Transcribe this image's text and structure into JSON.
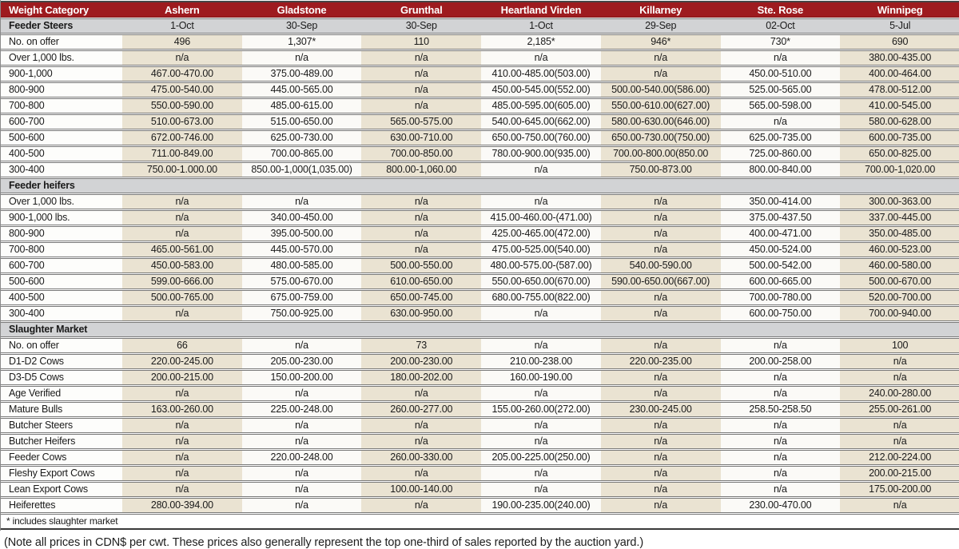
{
  "chart_data": {
    "type": "table",
    "columns": [
      "Weight Category",
      "Ashern",
      "Gladstone",
      "Grunthal",
      "Heartland Virden",
      "Killarney",
      "Ste. Rose",
      "Winnipeg"
    ],
    "sections": [
      {
        "title": "Feeder Steers",
        "dates": [
          "1-Oct",
          "30-Sep",
          "30-Sep",
          "1-Oct",
          "29-Sep",
          "02-Oct",
          "5-Jul"
        ],
        "rows": [
          {
            "label": "No. on offer",
            "values": [
              "496",
              "1,307*",
              "110",
              "2,185*",
              "946*",
              "730*",
              "690"
            ]
          },
          {
            "label": "Over 1,000 lbs.",
            "values": [
              "n/a",
              "n/a",
              "n/a",
              "n/a",
              "n/a",
              "n/a",
              "380.00-435.00"
            ]
          },
          {
            "label": "900-1,000",
            "values": [
              "467.00-470.00",
              "375.00-489.00",
              "n/a",
              "410.00-485.00(503.00)",
              "n/a",
              "450.00-510.00",
              "400.00-464.00"
            ]
          },
          {
            "label": "800-900",
            "values": [
              "475.00-540.00",
              "445.00-565.00",
              "n/a",
              "450.00-545.00(552.00)",
              "500.00-540.00(586.00)",
              "525.00-565.00",
              "478.00-512.00"
            ]
          },
          {
            "label": "700-800",
            "values": [
              "550.00-590.00",
              "485.00-615.00",
              "n/a",
              "485.00-595.00(605.00)",
              "550.00-610.00(627.00)",
              "565.00-598.00",
              "410.00-545.00"
            ]
          },
          {
            "label": "600-700",
            "values": [
              "510.00-673.00",
              "515.00-650.00",
              "565.00-575.00",
              "540.00-645.00(662.00)",
              "580.00-630.00(646.00)",
              "n/a",
              "580.00-628.00"
            ]
          },
          {
            "label": "500-600",
            "values": [
              "672.00-746.00",
              "625.00-730.00",
              "630.00-710.00",
              "650.00-750.00(760.00)",
              "650.00-730.00(750.00)",
              "625.00-735.00",
              "600.00-735.00"
            ]
          },
          {
            "label": "400-500",
            "values": [
              "711.00-849.00",
              "700.00-865.00",
              "700.00-850.00",
              "780.00-900.00(935.00)",
              "700.00-800.00(850.00",
              "725.00-860.00",
              "650.00-825.00"
            ]
          },
          {
            "label": "300-400",
            "values": [
              "750.00-1.000.00",
              "850.00-1,000(1,035.00)",
              "800.00-1,060.00",
              "n/a",
              "750.00-873.00",
              "800.00-840.00",
              "700.00-1,020.00"
            ]
          }
        ]
      },
      {
        "title": "Feeder heifers",
        "dates": null,
        "rows": [
          {
            "label": "Over 1,000 lbs.",
            "values": [
              "n/a",
              "n/a",
              "n/a",
              "n/a",
              "n/a",
              "350.00-414.00",
              "300.00-363.00"
            ]
          },
          {
            "label": "900-1,000 lbs.",
            "values": [
              "n/a",
              "340.00-450.00",
              "n/a",
              "415.00-460.00-(471.00)",
              "n/a",
              "375.00-437.50",
              "337.00-445.00"
            ]
          },
          {
            "label": "800-900",
            "values": [
              "n/a",
              "395.00-500.00",
              "n/a",
              "425.00-465.00(472.00)",
              "n/a",
              "400.00-471.00",
              "350.00-485.00"
            ]
          },
          {
            "label": "700-800",
            "values": [
              "465.00-561.00",
              "445.00-570.00",
              "n/a",
              "475.00-525.00(540.00)",
              "n/a",
              "450.00-524.00",
              "460.00-523.00"
            ]
          },
          {
            "label": "600-700",
            "values": [
              "450.00-583.00",
              "480.00-585.00",
              "500.00-550.00",
              "480.00-575.00-(587.00)",
              "540.00-590.00",
              "500.00-542.00",
              "460.00-580.00"
            ]
          },
          {
            "label": "500-600",
            "values": [
              "599.00-666.00",
              "575.00-670.00",
              "610.00-650.00",
              "550.00-650.00(670.00)",
              "590.00-650.00(667.00)",
              "600.00-665.00",
              "500.00-670.00"
            ]
          },
          {
            "label": "400-500",
            "values": [
              "500.00-765.00",
              "675.00-759.00",
              "650.00-745.00",
              "680.00-755.00(822.00)",
              "n/a",
              "700.00-780.00",
              "520.00-700.00"
            ]
          },
          {
            "label": "300-400",
            "values": [
              "n/a",
              "750.00-925.00",
              "630.00-950.00",
              "n/a",
              "n/a",
              "600.00-750.00",
              "700.00-940.00"
            ]
          }
        ]
      },
      {
        "title": "Slaughter Market",
        "dates": null,
        "rows": [
          {
            "label": "No. on offer",
            "values": [
              "66",
              "n/a",
              "73",
              "n/a",
              "n/a",
              "n/a",
              "100"
            ]
          },
          {
            "label": "D1-D2 Cows",
            "values": [
              "220.00-245.00",
              "205.00-230.00",
              "200.00-230.00",
              "210.00-238.00",
              "220.00-235.00",
              "200.00-258.00",
              "n/a"
            ]
          },
          {
            "label": "D3-D5 Cows",
            "values": [
              "200.00-215.00",
              "150.00-200.00",
              "180.00-202.00",
              "160.00-190.00",
              "n/a",
              "n/a",
              "n/a"
            ]
          },
          {
            "label": "Age Verified",
            "values": [
              "n/a",
              "n/a",
              "n/a",
              "n/a",
              "n/a",
              "n/a",
              "240.00-280.00"
            ]
          },
          {
            "label": "Mature Bulls",
            "values": [
              "163.00-260.00",
              "225.00-248.00",
              "260.00-277.00",
              "155.00-260.00(272.00)",
              "230.00-245.00",
              "258.50-258.50",
              "255.00-261.00"
            ]
          },
          {
            "label": "Butcher Steers",
            "values": [
              "n/a",
              "n/a",
              "n/a",
              "n/a",
              "n/a",
              "n/a",
              "n/a"
            ]
          },
          {
            "label": "Butcher Heifers",
            "values": [
              "n/a",
              "n/a",
              "n/a",
              "n/a",
              "n/a",
              "n/a",
              "n/a"
            ]
          },
          {
            "label": "Feeder Cows",
            "values": [
              "n/a",
              "220.00-248.00",
              "260.00-330.00",
              "205.00-225.00(250.00)",
              "n/a",
              "n/a",
              "212.00-224.00"
            ]
          },
          {
            "label": "Fleshy Export Cows",
            "values": [
              "n/a",
              "n/a",
              "n/a",
              "n/a",
              "n/a",
              "n/a",
              "200.00-215.00"
            ]
          },
          {
            "label": "Lean Export Cows",
            "values": [
              "n/a",
              "n/a",
              "100.00-140.00",
              "n/a",
              "n/a",
              "n/a",
              "175.00-200.00"
            ]
          },
          {
            "label": "Heiferettes",
            "values": [
              "280.00-394.00",
              "n/a",
              "n/a",
              "190.00-235.00(240.00)",
              "n/a",
              "230.00-470.00",
              "n/a"
            ]
          }
        ]
      }
    ],
    "footnote": "* includes slaughter market",
    "note": "(Note all prices in CDN$ per cwt. These prices also generally represent the top one-third of sales reported by the auction yard.)"
  },
  "colors": {
    "header_bg": "#9e1b1f",
    "header_text": "#ffffff",
    "section_bg": "#d2d3d5",
    "cell_beige": "#eae3d2",
    "cell_white": "#fbfaf7"
  }
}
